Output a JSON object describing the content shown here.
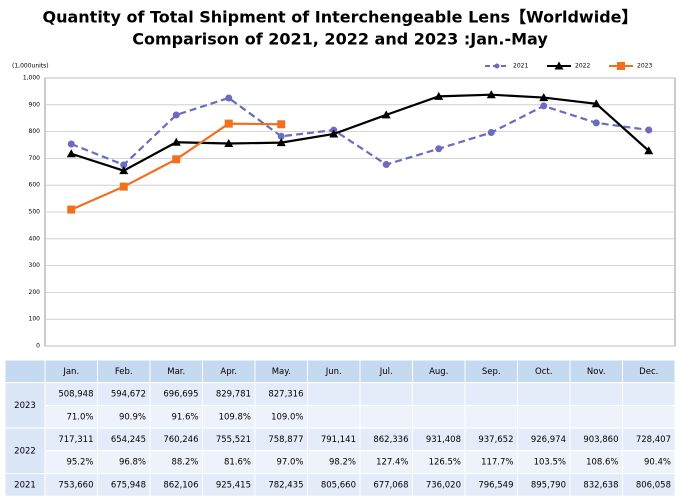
{
  "chart_data": {
    "type": "line",
    "title": "Quantity of Total Shipment of Interchengeable Lens【Worldwide】",
    "subtitle": "Comparison of 2021, 2022 and 2023 :Jan.-May",
    "y_label": "(1,000units)",
    "categories": [
      "Jan.",
      "Feb.",
      "Mar.",
      "Apr.",
      "May.",
      "Jun.",
      "Jul.",
      "Aug.",
      "Sep.",
      "Oct.",
      "Nov.",
      "Dec."
    ],
    "ylim": [
      0,
      1000
    ],
    "yticks": [
      0,
      100,
      200,
      300,
      400,
      500,
      600,
      700,
      800,
      900,
      {
        "value": 1000,
        "label": "1,000"
      }
    ],
    "grid": true,
    "legend": "top-right",
    "series": [
      {
        "name": "2021",
        "color": "#6b6bc4",
        "dash": true,
        "marker": "circle",
        "values": [
          753.66,
          675.948,
          862.106,
          925.415,
          782.435,
          805.66,
          677.068,
          736.02,
          796.549,
          895.79,
          832.638,
          806.058
        ],
        "value_labels": [
          "753,660",
          "675,948",
          "862,106",
          "925,415",
          "782,435",
          "805,660",
          "677,068",
          "736,020",
          "796,549",
          "895,790",
          "832,638",
          "806,058"
        ]
      },
      {
        "name": "2022",
        "color": "#000000",
        "dash": false,
        "marker": "triangle",
        "values": [
          717.311,
          654.245,
          760.246,
          755.521,
          758.877,
          791.141,
          862.336,
          931.408,
          937.652,
          926.974,
          903.86,
          728.407
        ],
        "value_labels": [
          "717,311",
          "654,245",
          "760,246",
          "755,521",
          "758,877",
          "791,141",
          "862,336",
          "931,408",
          "937,652",
          "926,974",
          "903,860",
          "728,407"
        ],
        "ratio_labels": [
          "95.2%",
          "96.8%",
          "88.2%",
          "81.6%",
          "97.0%",
          "98.2%",
          "127.4%",
          "126.5%",
          "117.7%",
          "103.5%",
          "108.6%",
          "90.4%"
        ]
      },
      {
        "name": "2023",
        "color": "#f07020",
        "dash": false,
        "marker": "square",
        "values": [
          508.948,
          594.672,
          696.695,
          829.781,
          827.316,
          null,
          null,
          null,
          null,
          null,
          null,
          null
        ],
        "value_labels": [
          "508,948",
          "594,672",
          "696,695",
          "829,781",
          "827,316",
          null,
          null,
          null,
          null,
          null,
          null,
          null
        ],
        "ratio_labels": [
          "71.0%",
          "90.9%",
          "91.6%",
          "109.8%",
          "109.0%",
          null,
          null,
          null,
          null,
          null,
          null,
          null
        ]
      }
    ]
  }
}
